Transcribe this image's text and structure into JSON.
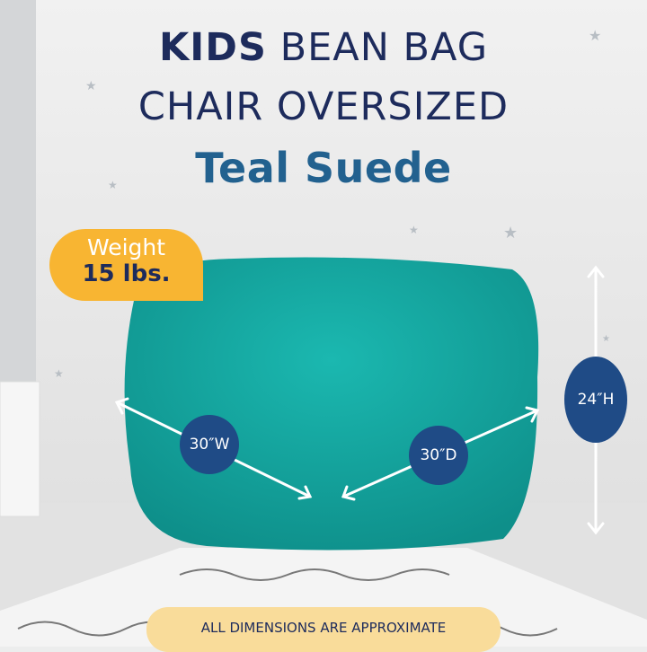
{
  "title": {
    "line1_bold": "KIDS",
    "line1_rest": " BEAN BAG",
    "line2": "CHAIR OVERSIZED",
    "line3": "Teal Suede"
  },
  "weight_badge": {
    "label": "Weight",
    "value": "15 lbs."
  },
  "dimensions": {
    "width": "30″W",
    "depth": "30″D",
    "height": "24″H"
  },
  "footer_note": "ALL DIMENSIONS ARE APPROXIMATE",
  "colors": {
    "navy": "#1d2b5c",
    "accent_blue": "#22618f",
    "teal_bag": "#15a9a3",
    "badge_yellow": "#f8b532",
    "dimension_circle": "#1f4b86"
  }
}
